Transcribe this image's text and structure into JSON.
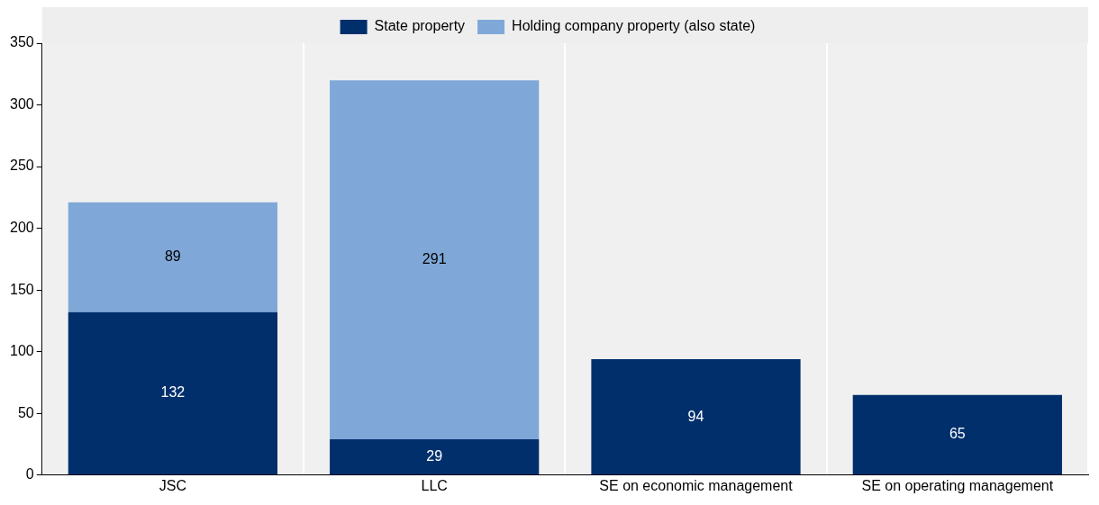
{
  "chart_data": {
    "type": "bar",
    "stacked": true,
    "categories": [
      "JSC",
      "LLC",
      "SE on economic management",
      "SE on operating management"
    ],
    "series": [
      {
        "name": "State property",
        "color": "#002f6c",
        "values": [
          132,
          29,
          94,
          65
        ]
      },
      {
        "name": "Holding company property (also state)",
        "color": "#7fa8d8",
        "values": [
          89,
          291,
          null,
          null
        ]
      }
    ],
    "ylim": [
      0,
      350
    ],
    "yticks": [
      0,
      50,
      100,
      150,
      200,
      250,
      300,
      350
    ],
    "grid": "x",
    "legend": "top",
    "data_labels": true
  }
}
